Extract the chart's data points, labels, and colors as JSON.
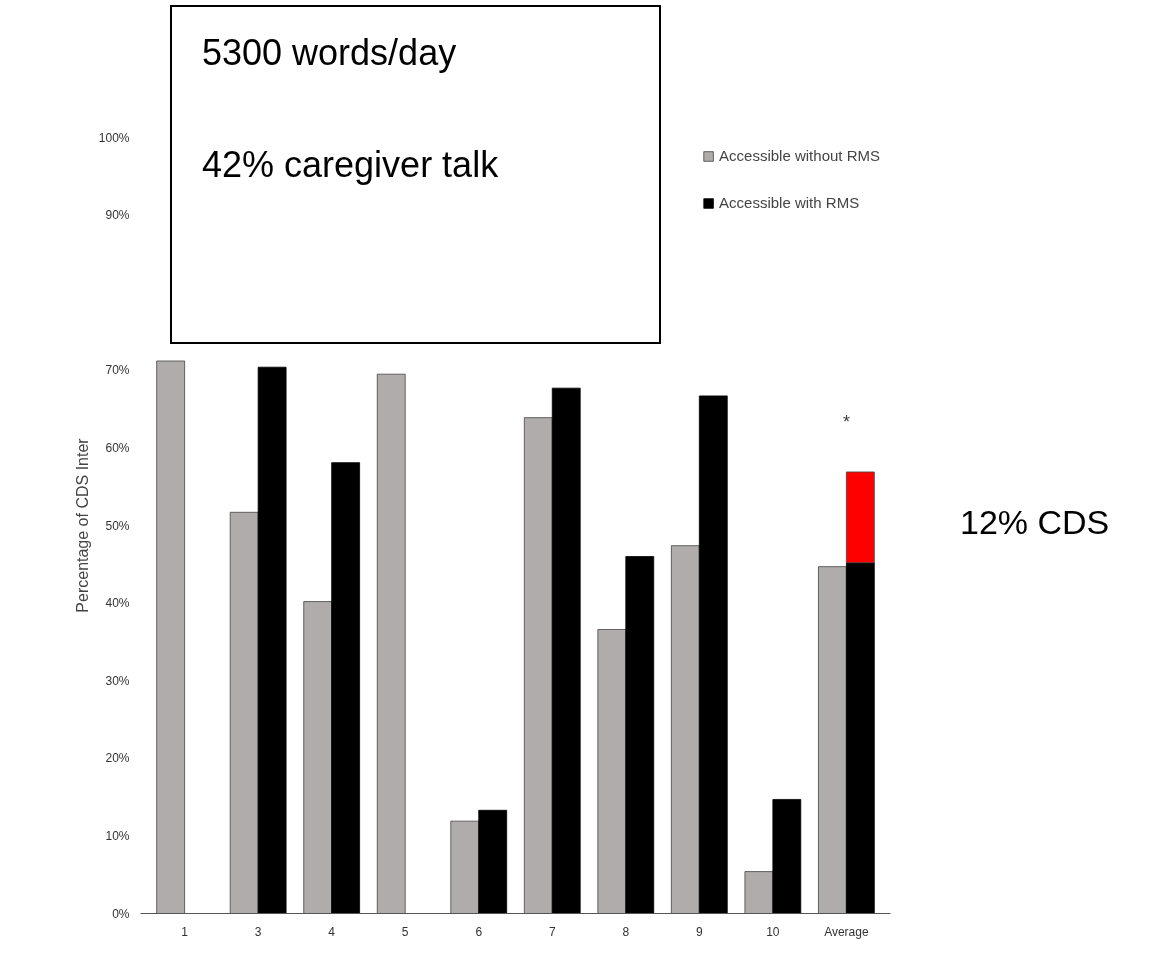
{
  "chart_data": {
    "type": "bar",
    "ylabel": "Percentage of CDS Inter",
    "categories": [
      "1",
      "3",
      "4",
      "5",
      "6",
      "7",
      "8",
      "9",
      "10",
      "Average"
    ],
    "series": [
      {
        "name": "Accessible without RMS",
        "color": "#b0acab",
        "values": [
          71.2,
          51.7,
          40.2,
          69.5,
          11.9,
          63.9,
          36.6,
          47.4,
          5.4,
          44.7
        ]
      },
      {
        "name": "Accessible with RMS",
        "color": "#000000",
        "values": [
          null,
          70.4,
          58.1,
          null,
          13.3,
          67.7,
          46.0,
          66.7,
          14.7,
          45.2
        ]
      },
      {
        "color": "#ff0000",
        "base": [
          null,
          null,
          null,
          null,
          null,
          null,
          null,
          null,
          null,
          45.2
        ],
        "values": [
          null,
          null,
          null,
          null,
          null,
          null,
          null,
          null,
          null,
          11.7
        ]
      }
    ],
    "ylim": [
      0,
      100
    ],
    "yticks": [
      {
        "value": 0,
        "label": "0%"
      },
      {
        "value": 10,
        "label": "10%"
      },
      {
        "value": 20,
        "label": "20%"
      },
      {
        "value": 30,
        "label": "30%"
      },
      {
        "value": 40,
        "label": "40%"
      },
      {
        "value": 50,
        "label": "50%"
      },
      {
        "value": 60,
        "label": "60%"
      },
      {
        "value": 70,
        "label": "70%"
      },
      {
        "value": 90,
        "label": "90%"
      },
      {
        "value": 100,
        "label": "100%"
      }
    ],
    "annotations": [
      "5300 words/day",
      "42% caregiver talk",
      "*",
      "12% CDS"
    ],
    "legend": "top right",
    "grid": false
  }
}
